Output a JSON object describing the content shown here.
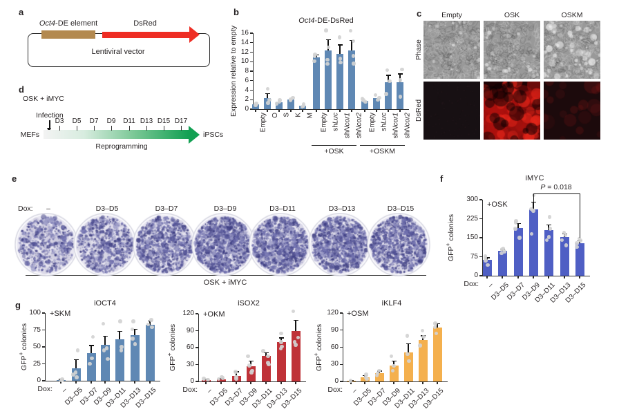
{
  "panels": {
    "a": {
      "label": "a",
      "element_label_gene": "Oct4",
      "element_label_suffix": "-DE element",
      "arrow_label": "DsRed",
      "vector_label": "Lentiviral vector",
      "element_color": "#b3894f",
      "arrow_color": "#ee2d24"
    },
    "b": {
      "label": "b"
    },
    "c": {
      "label": "c",
      "columns": [
        "Empty",
        "OSK",
        "OSKM"
      ],
      "row_labels": [
        "Phase",
        "DsRed"
      ]
    },
    "d": {
      "label": "d",
      "condition": "OSK + iMYC",
      "infection_label": "Infection",
      "start_label": "MEFs",
      "end_label": "iPSCs",
      "process_label": "Reprogramming",
      "days": [
        "D3",
        "D5",
        "D7",
        "D9",
        "D11",
        "D13",
        "D15",
        "D17"
      ],
      "arrow_color_end": "#12a053"
    },
    "e": {
      "label": "e",
      "dox_prefix": "Dox:",
      "conditions": [
        "–",
        "D3–D5",
        "D3–D7",
        "D3–D9",
        "D3–D11",
        "D3–D13",
        "D3–D15"
      ],
      "group_label": "OSK + iMYC",
      "colony_densities": [
        0.3,
        0.4,
        0.65,
        0.92,
        0.75,
        0.82,
        0.7
      ],
      "stain_color": "#6c6cab"
    },
    "f": {
      "label": "f"
    },
    "g": {
      "label": "g"
    }
  },
  "chart_data": [
    {
      "panel": "b",
      "type": "bar",
      "title": "Oct4-DE-DsRed",
      "title_italic_part": "Oct4",
      "ylabel": "Expression relative to empty",
      "ylim": [
        0,
        16
      ],
      "yticks": [
        0,
        2,
        4,
        6,
        8,
        10,
        12,
        14,
        16
      ],
      "categories": [
        "Empty",
        "O",
        "S",
        "K",
        "M",
        "Empty",
        "shLuc",
        "shNcor1",
        "shNcor2",
        "Empty",
        "shLuc",
        "shNcor1",
        "shNcor2"
      ],
      "values": [
        1.0,
        2.3,
        1.5,
        2.1,
        0.7,
        10.9,
        12.3,
        11.7,
        12.4,
        1.8,
        2.4,
        5.7,
        5.7
      ],
      "errors": [
        0.15,
        1.0,
        0.3,
        0.25,
        0.15,
        0.5,
        2.3,
        1.8,
        2.1,
        0.3,
        0.4,
        1.4,
        1.7
      ],
      "points": [
        [
          0.8,
          1.0,
          1.2
        ],
        [
          1.3,
          2.0,
          4.3
        ],
        [
          1.2,
          1.5,
          1.9
        ],
        [
          1.9,
          2.1,
          2.4
        ],
        [
          0.5,
          0.7,
          1.0
        ],
        [
          10.1,
          11.2,
          11.5
        ],
        [
          9.5,
          10.4,
          13.0,
          16.6
        ],
        [
          9.8,
          10.6,
          15.1
        ],
        [
          9.6,
          11.2,
          14.3,
          16.5
        ],
        [
          1.5,
          1.9,
          2.2
        ],
        [
          2.0,
          2.4,
          3.0
        ],
        [
          3.2,
          5.9,
          8.2
        ],
        [
          2.6,
          6.1,
          8.4
        ]
      ],
      "groups": [
        {
          "label": "+OSK",
          "from": 5,
          "to": 8
        },
        {
          "label": "+OSKM",
          "from": 9,
          "to": 12
        }
      ],
      "bar_color": "#5f88b4",
      "xlabel_rotation": 90,
      "grid": false,
      "legend": null
    },
    {
      "panel": "f",
      "type": "bar",
      "title": "iMYC",
      "inner_label": "+OSK",
      "x_prefix": "Dox:",
      "ylabel": "GFP+ colonies",
      "ylim": [
        0,
        300
      ],
      "yticks": [
        0,
        75,
        150,
        225,
        300
      ],
      "categories": [
        "–",
        "D3–D5",
        "D3–D7",
        "D3–D9",
        "D3–D11",
        "D3–D13",
        "D3–D15"
      ],
      "values": [
        63,
        97,
        188,
        262,
        179,
        152,
        129
      ],
      "errors": [
        8,
        8,
        18,
        28,
        22,
        13,
        9
      ],
      "points": [
        [
          42,
          60,
          70,
          76
        ],
        [
          88,
          96,
          104,
          108
        ],
        [
          150,
          186,
          210,
          215
        ],
        [
          165,
          256,
          263,
          318
        ],
        [
          140,
          153,
          186,
          232
        ],
        [
          120,
          141,
          160,
          171
        ],
        [
          113,
          128,
          139,
          146
        ]
      ],
      "significance": {
        "label": "P = 0.018",
        "from": "D3–D9",
        "to": "D3–D15"
      },
      "bar_color": "#4f5fc4",
      "xlabel_rotation": 45,
      "grid": false,
      "legend": null
    },
    {
      "panel": "g1",
      "type": "bar",
      "title": "iOCT4",
      "inner_label": "+SKM",
      "x_prefix": "Dox:",
      "ylabel": "GFP+ colonies",
      "ylim": [
        0,
        100
      ],
      "yticks": [
        0,
        25,
        50,
        75,
        100
      ],
      "categories": [
        "–",
        "D3–D5",
        "D3–D7",
        "D3–D9",
        "D3–D11",
        "D3–D13",
        "D3–D15"
      ],
      "values": [
        1,
        18,
        41,
        53,
        61,
        67,
        83
      ],
      "errors": [
        1,
        13,
        11,
        13,
        12,
        9,
        5
      ],
      "points": [
        [
          1,
          2
        ],
        [
          5,
          9,
          12,
          45
        ],
        [
          25,
          33,
          65
        ],
        [
          32,
          45,
          48,
          84
        ],
        [
          45,
          50,
          88
        ],
        [
          54,
          62,
          76,
          88
        ],
        [
          79,
          83,
          90
        ]
      ],
      "bar_color": "#5f88b4",
      "xlabel_rotation": 45,
      "grid": false,
      "legend": null
    },
    {
      "panel": "g2",
      "type": "bar",
      "title": "iSOX2",
      "inner_label": "+OKM",
      "x_prefix": "Dox:",
      "ylabel": "GFP+ colonies",
      "ylim": [
        0,
        120
      ],
      "yticks": [
        0,
        30,
        60,
        90,
        120
      ],
      "categories": [
        "–",
        "D3–D5",
        "D3–D7",
        "D3–D9",
        "D3–D11",
        "D3–D13",
        "D3–D15"
      ],
      "values": [
        3,
        4,
        10,
        27,
        45,
        70,
        89
      ],
      "errors": [
        1,
        1,
        7,
        9,
        6,
        7,
        19
      ],
      "points": [
        [
          3,
          5
        ],
        [
          4,
          6,
          8
        ],
        [
          5,
          8,
          17
        ],
        [
          16,
          19,
          28,
          45
        ],
        [
          30,
          33,
          45,
          54
        ],
        [
          58,
          62,
          70,
          85
        ],
        [
          65,
          70,
          78,
          124
        ]
      ],
      "bar_color": "#bf3238",
      "xlabel_rotation": 45,
      "grid": false,
      "legend": null
    },
    {
      "panel": "g3",
      "type": "bar",
      "title": "iKLF4",
      "inner_label": "+OSM",
      "x_prefix": "Dox:",
      "ylabel": "GFP+ colonies",
      "ylim": [
        0,
        120
      ],
      "yticks": [
        0,
        30,
        60,
        90,
        120
      ],
      "categories": [
        "–",
        "D3–D5",
        "D3–D7",
        "D3–D9",
        "D3–D11",
        "D3–D13",
        "D3–D15"
      ],
      "values": [
        1,
        7,
        14,
        28,
        51,
        73,
        95
      ],
      "errors": [
        0.5,
        3,
        4,
        8,
        15,
        7,
        6
      ],
      "points": [
        [
          1
        ],
        [
          4,
          7,
          12
        ],
        [
          11,
          14,
          19
        ],
        [
          19,
          27,
          44
        ],
        [
          36,
          48,
          80
        ],
        [
          63,
          78,
          89
        ],
        [
          84,
          95,
          102
        ]
      ],
      "bar_color": "#f4b04e",
      "xlabel_rotation": 45,
      "grid": false,
      "legend": null
    }
  ]
}
